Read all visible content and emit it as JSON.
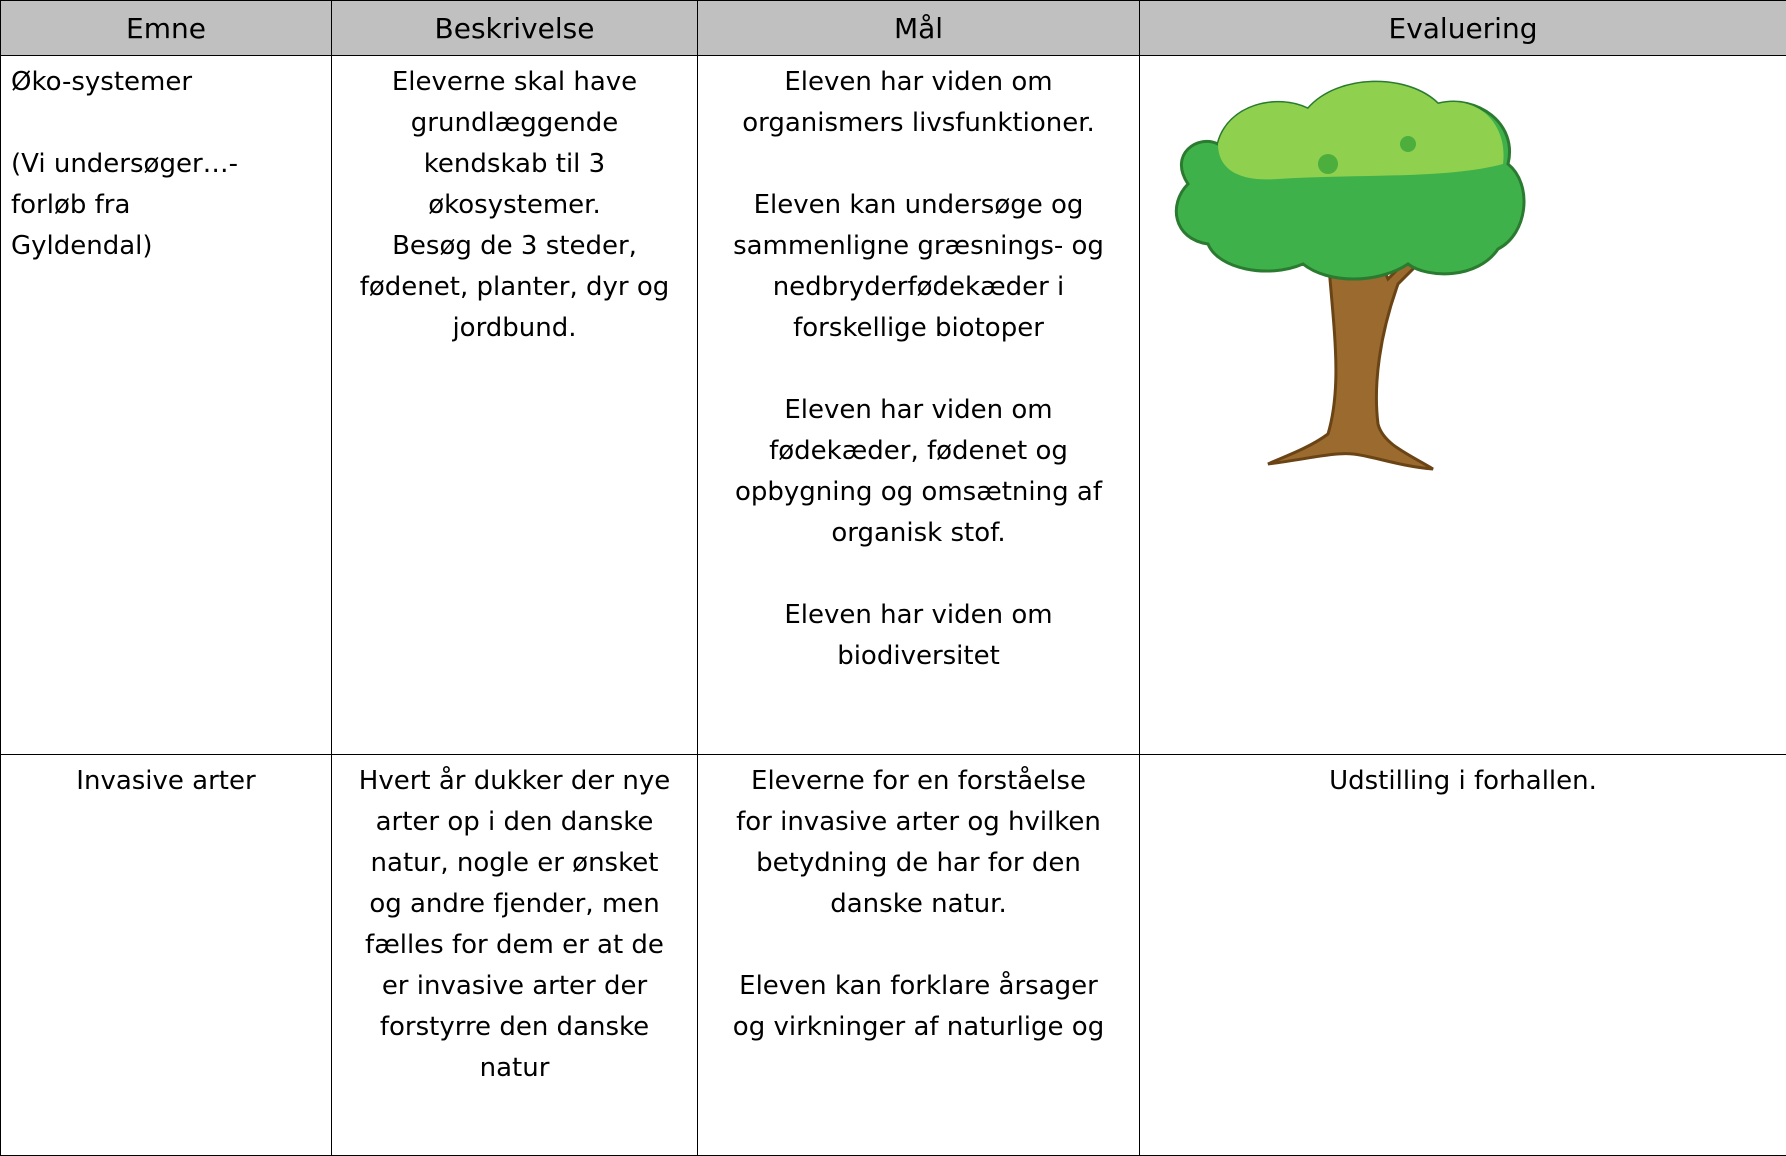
{
  "table": {
    "header": [
      "Emne",
      "Beskrivelse",
      "Mål",
      "Evaluering"
    ],
    "rows": [
      [
        [
          [
            "Øko-systemer"
          ],
          [
            "(Vi undersøger…-",
            "forløb fra",
            "Gyldendal)"
          ]
        ],
        [
          [
            "Eleverne skal have",
            "grundlæggende",
            "kendskab til 3",
            "økosystemer.",
            "Besøg de 3 steder,",
            "fødenet, planter, dyr og",
            "jordbund."
          ]
        ],
        [
          [
            "Eleven har viden om",
            "organismers livsfunktioner."
          ],
          [
            "Eleven kan undersøge og",
            "sammenligne græsnings- og",
            "nedbryderfødekæder i",
            "forskellige biotoper"
          ],
          [
            "Eleven har viden om",
            "fødekæder, fødenet og",
            "opbygning og omsætning af",
            "organisk stof."
          ],
          [
            "Eleven har viden om",
            "biodiversitet"
          ]
        ],
        []
      ],
      [
        [
          [
            "Invasive arter"
          ]
        ],
        [
          [
            "Hvert år dukker der nye",
            "arter op i den danske",
            "natur, nogle er ønsket",
            "og andre fjender, men",
            "fælles for dem er at de",
            "er invasive arter der",
            "forstyrre den danske",
            "natur"
          ]
        ],
        [
          [
            "Eleverne for en forståelse",
            "for invasive arter og hvilken",
            "betydning de har for den",
            "danske natur."
          ],
          [
            "Eleven kan forklare årsager",
            "og virkninger af naturlige og"
          ]
        ],
        [
          [
            "Udstilling i forhallen."
          ]
        ]
      ]
    ]
  }
}
